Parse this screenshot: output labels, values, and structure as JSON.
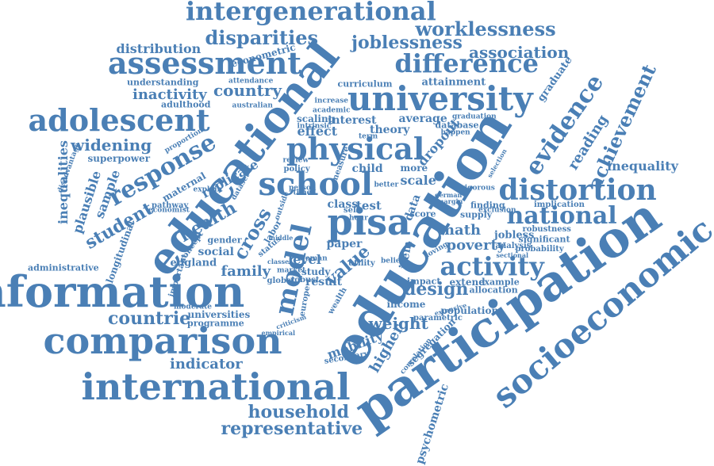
{
  "color": "#4a7fb5",
  "words": [
    {
      "text": "education"
    },
    {
      "text": "educational"
    },
    {
      "text": "participation"
    },
    {
      "text": "socioeconomic"
    },
    {
      "text": "information"
    },
    {
      "text": "comparison"
    },
    {
      "text": "international"
    },
    {
      "text": "university"
    },
    {
      "text": "physical"
    },
    {
      "text": "school"
    },
    {
      "text": "pisa"
    },
    {
      "text": "model"
    },
    {
      "text": "assessment"
    },
    {
      "text": "adolescent"
    },
    {
      "text": "intergenerational"
    },
    {
      "text": "distortion"
    },
    {
      "text": "difference"
    },
    {
      "text": "activity"
    },
    {
      "text": "response"
    },
    {
      "text": "national"
    },
    {
      "text": "evidence"
    },
    {
      "text": "achievement"
    },
    {
      "text": "worklessness"
    },
    {
      "text": "joblessness"
    },
    {
      "text": "disparities"
    },
    {
      "text": "association"
    },
    {
      "text": "household"
    },
    {
      "text": "representative"
    },
    {
      "text": "indicator"
    },
    {
      "text": "countrie"
    },
    {
      "text": "weight"
    },
    {
      "text": "design"
    },
    {
      "text": "family"
    },
    {
      "text": "student"
    },
    {
      "text": "widening"
    },
    {
      "text": "health"
    },
    {
      "text": "cross"
    },
    {
      "text": "country"
    },
    {
      "text": "inactivity"
    },
    {
      "text": "distribution"
    },
    {
      "text": "inequality"
    },
    {
      "text": "reading"
    },
    {
      "text": "value"
    },
    {
      "text": "higher"
    },
    {
      "text": "mobility"
    },
    {
      "text": "math"
    },
    {
      "text": "poverty"
    },
    {
      "text": "psychometric"
    },
    {
      "text": "inequalities"
    },
    {
      "text": "plausible"
    },
    {
      "text": "sample"
    },
    {
      "text": "longitudinal"
    },
    {
      "text": "replicate"
    },
    {
      "text": "dropout"
    },
    {
      "text": "graduate"
    },
    {
      "text": "level"
    },
    {
      "text": "effect"
    },
    {
      "text": "theory"
    },
    {
      "text": "interest"
    },
    {
      "text": "average"
    },
    {
      "text": "understanding"
    },
    {
      "text": "econometric"
    },
    {
      "text": "attainment"
    },
    {
      "text": "curriculum"
    },
    {
      "text": "superpower"
    },
    {
      "text": "maternal"
    },
    {
      "text": "social"
    },
    {
      "text": "england"
    },
    {
      "text": "gender"
    },
    {
      "text": "result"
    },
    {
      "text": "income"
    },
    {
      "text": "population"
    },
    {
      "text": "segregation"
    },
    {
      "text": "secondary"
    },
    {
      "text": "jobless"
    },
    {
      "text": "significant"
    },
    {
      "text": "supply"
    },
    {
      "text": "finding"
    },
    {
      "text": "extend"
    },
    {
      "text": "allocation"
    },
    {
      "text": "universities"
    },
    {
      "text": "programme"
    },
    {
      "text": "administrative"
    },
    {
      "text": "adulthood"
    },
    {
      "text": "scale"
    },
    {
      "text": "child"
    },
    {
      "text": "more"
    },
    {
      "text": "test"
    },
    {
      "text": "class"
    },
    {
      "text": "paper"
    },
    {
      "text": "study"
    },
    {
      "text": "item"
    },
    {
      "text": "data"
    },
    {
      "text": "score"
    },
    {
      "text": "impact"
    },
    {
      "text": "scaling"
    },
    {
      "text": "database"
    },
    {
      "text": "example"
    },
    {
      "text": "parametric"
    },
    {
      "text": "robustness"
    },
    {
      "text": "probability"
    },
    {
      "text": "implication"
    },
    {
      "text": "attendance"
    },
    {
      "text": "australian"
    },
    {
      "text": "proportion"
    },
    {
      "text": "disadvantage"
    },
    {
      "text": "pathway"
    },
    {
      "text": "economist"
    },
    {
      "text": "explain"
    },
    {
      "text": "important"
    },
    {
      "text": "concept"
    },
    {
      "text": "status"
    },
    {
      "text": "labor"
    },
    {
      "text": "europe"
    },
    {
      "text": "wealth"
    },
    {
      "text": "moderate"
    },
    {
      "text": "empirical"
    },
    {
      "text": "criticism"
    },
    {
      "text": "extensive"
    },
    {
      "text": "correlation"
    },
    {
      "text": "sectional"
    },
    {
      "text": "analysis"
    },
    {
      "text": "exclusion"
    },
    {
      "text": "robust"
    },
    {
      "text": "utility"
    },
    {
      "text": "increase"
    },
    {
      "text": "academic"
    },
    {
      "text": "intrinsic"
    },
    {
      "text": "graduation"
    },
    {
      "text": "happen"
    },
    {
      "text": "selection"
    },
    {
      "text": "vigorous"
    },
    {
      "text": "german"
    },
    {
      "text": "margin"
    },
    {
      "text": "policy"
    },
    {
      "text": "review"
    },
    {
      "text": "person"
    },
    {
      "text": "time"
    },
    {
      "text": "global"
    },
    {
      "text": "market"
    },
    {
      "text": "classes"
    },
    {
      "text": "woman"
    },
    {
      "text": "self"
    },
    {
      "text": "hour"
    },
    {
      "text": "belief"
    },
    {
      "text": "term"
    },
    {
      "text": "better"
    },
    {
      "text": "dataset"
    },
    {
      "text": "outside"
    },
    {
      "text": "measure"
    },
    {
      "text": "middle"
    },
    {
      "text": "loving"
    }
  ]
}
